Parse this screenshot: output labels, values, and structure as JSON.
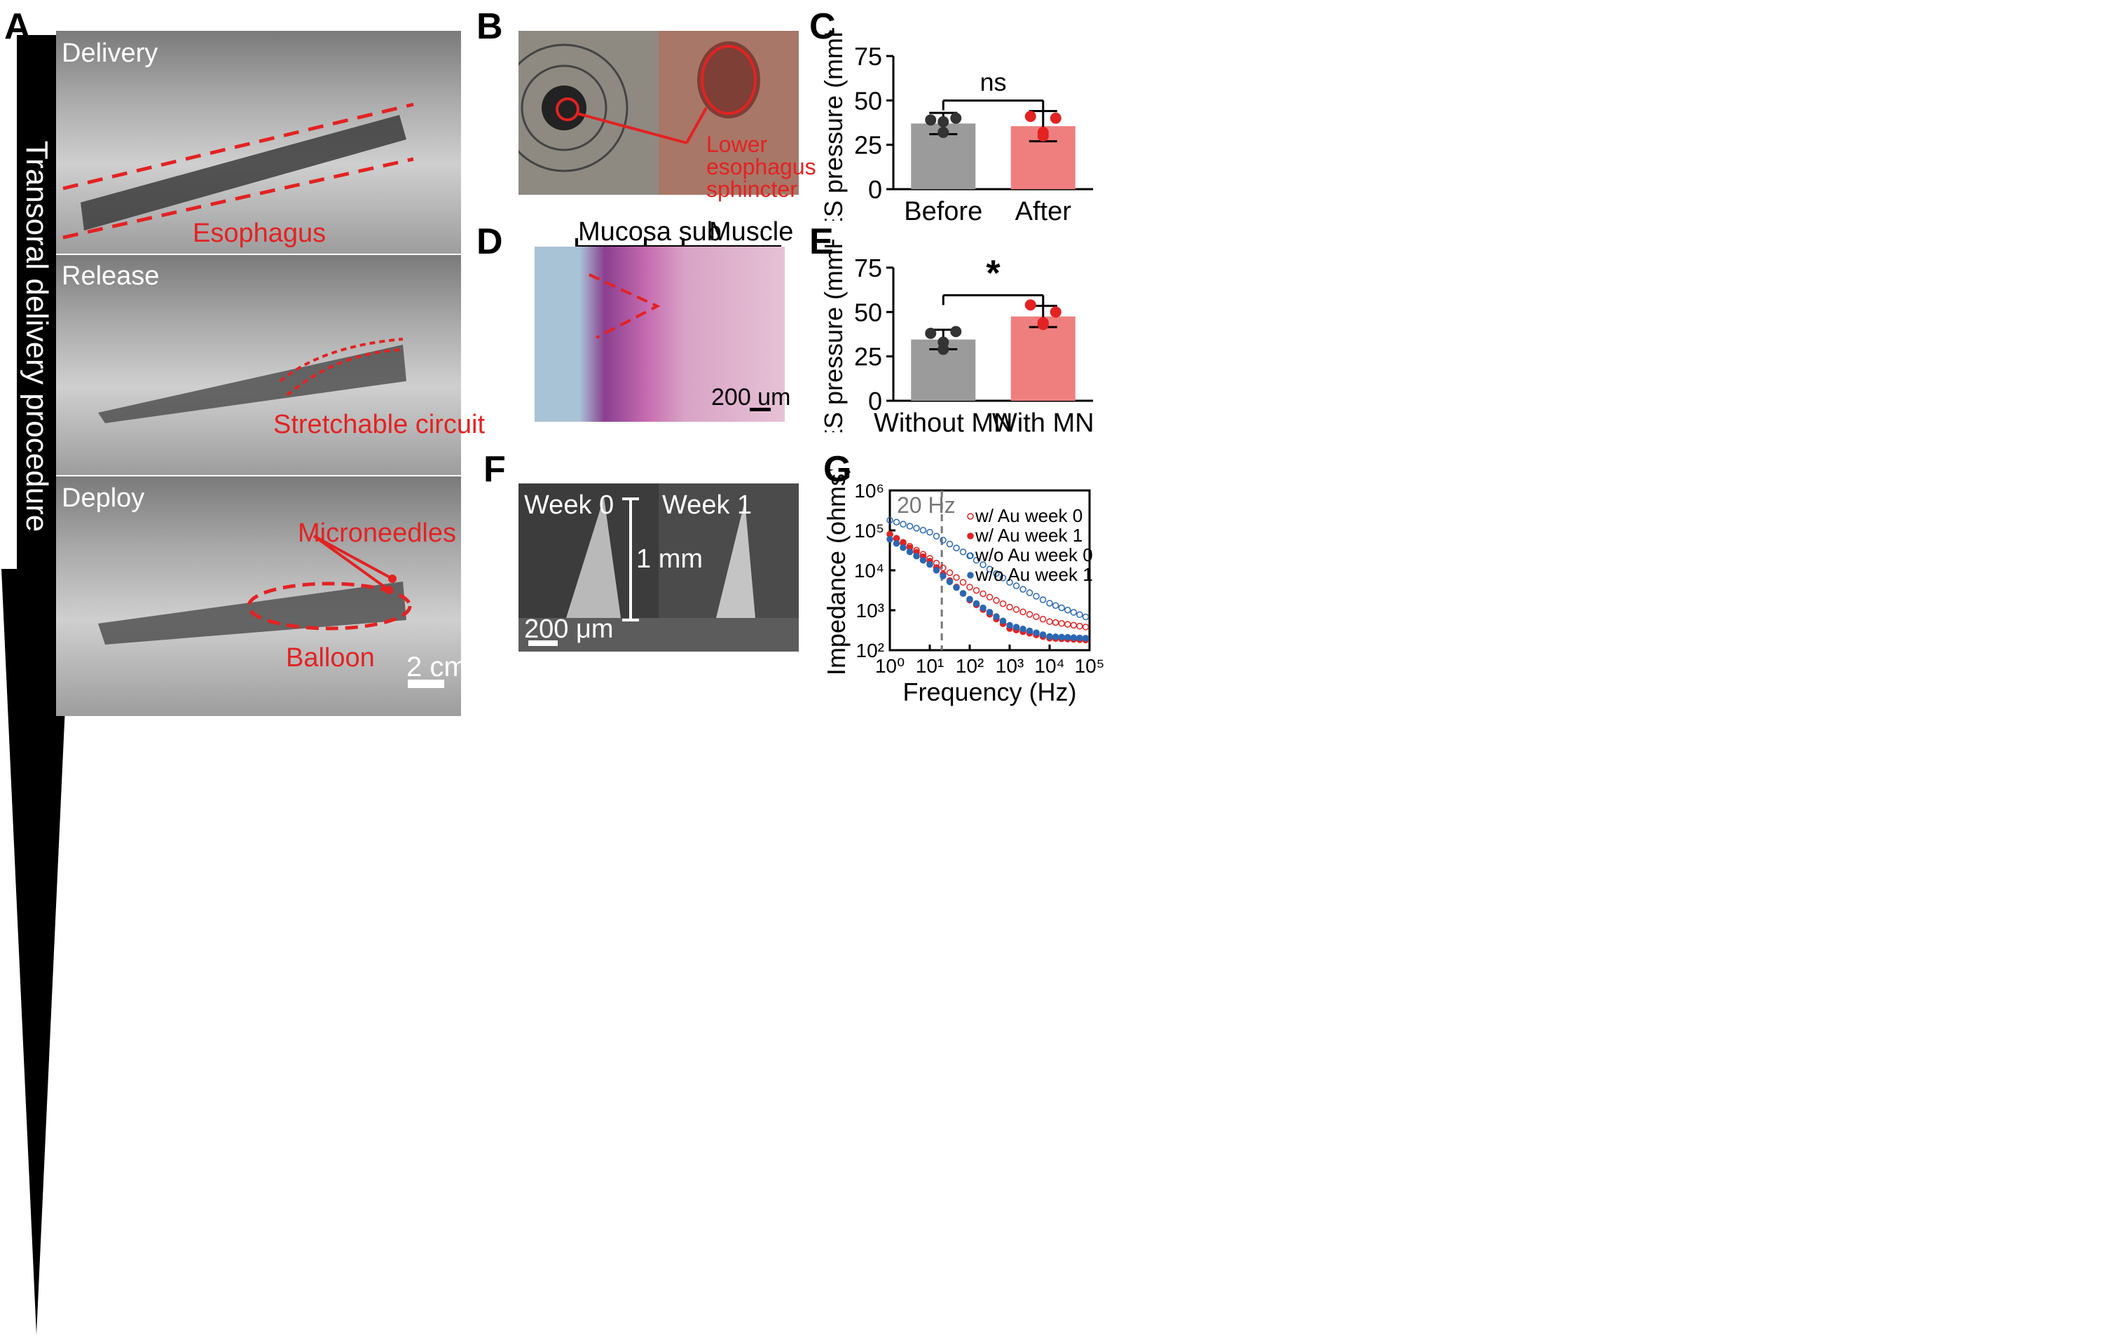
{
  "panels": {
    "A": "A",
    "B": "B",
    "C": "C",
    "D": "D",
    "E": "E",
    "F": "F",
    "G": "G"
  },
  "panel_a": {
    "arrow_text": "Transoral delivery procedure",
    "stages": [
      {
        "title": "Delivery",
        "label": "Esophagus"
      },
      {
        "title": "Release",
        "label": "Stretchable circuit"
      },
      {
        "title": "Deploy",
        "label_microneedles": "Microneedles",
        "label_balloon": "Balloon"
      }
    ],
    "scale_bar": "2 cm"
  },
  "panel_b": {
    "label": "Lower esophagus sphincter"
  },
  "panel_d": {
    "region_left": "Mucosa sub",
    "region_right": "Muscle",
    "scale_bar": "200 um"
  },
  "panel_f": {
    "left_title": "Week 0",
    "right_title": "Week 1",
    "height_label": "1 mm",
    "scale_bar": "200 μm"
  },
  "chart_data": [
    {
      "id": "C",
      "type": "bar",
      "ylabel": "LES pressure (mmHg)",
      "ylim": [
        0,
        75
      ],
      "yticks": [
        0,
        25,
        50,
        75
      ],
      "categories": [
        "Before",
        "After"
      ],
      "values": [
        37,
        35.5
      ],
      "error": [
        6,
        8.5
      ],
      "colors": [
        "#9b9b9b",
        "#ef7f7f"
      ],
      "point_colors": [
        "#333333",
        "#e32222"
      ],
      "points": [
        [
          39,
          40,
          32,
          38
        ],
        [
          41,
          40,
          30,
          32
        ]
      ],
      "significance": "ns"
    },
    {
      "id": "E",
      "type": "bar",
      "ylabel": "LES pressure (mmHg)",
      "ylim": [
        0,
        75
      ],
      "yticks": [
        0,
        25,
        50,
        75
      ],
      "categories": [
        "Without MN",
        "With MN"
      ],
      "values": [
        34.5,
        47.5
      ],
      "error": [
        5.5,
        6
      ],
      "colors": [
        "#9b9b9b",
        "#ef7f7f"
      ],
      "point_colors": [
        "#333333",
        "#e32222"
      ],
      "points": [
        [
          38,
          39,
          29,
          33
        ],
        [
          54,
          50,
          44,
          43
        ]
      ],
      "significance": "*"
    },
    {
      "id": "G",
      "type": "scatter",
      "xlabel": "Frequency (Hz)",
      "ylabel": "Impedance (ohms)",
      "xscale": "log",
      "yscale": "log",
      "xlim": [
        1,
        100000
      ],
      "ylim": [
        100,
        1000000
      ],
      "xtick_labels": [
        "10⁰",
        "10¹",
        "10²",
        "10³",
        "10⁴",
        "10⁵"
      ],
      "ytick_labels": [
        "10²",
        "10³",
        "10⁴",
        "10⁵",
        "10⁶"
      ],
      "vline": {
        "x": 20,
        "label": "20 Hz"
      },
      "legend_position": "top-right",
      "series": [
        {
          "name": "w/   Au week 0",
          "color": "#e32222",
          "filled": false,
          "x": [
            1,
            10,
            100,
            1000,
            10000,
            80000
          ],
          "y": [
            80000,
            20000,
            3800,
            1200,
            520,
            380
          ]
        },
        {
          "name": "w/   Au week 1",
          "color": "#e32222",
          "filled": true,
          "x": [
            1,
            10,
            100,
            1000,
            10000,
            80000
          ],
          "y": [
            80000,
            17000,
            1800,
            350,
            200,
            180
          ]
        },
        {
          "name": "w/o Au week 0",
          "color": "#2a67b3",
          "filled": false,
          "x": [
            1,
            10,
            100,
            1000,
            10000,
            80000
          ],
          "y": [
            180000,
            90000,
            23000,
            5000,
            1500,
            680
          ]
        },
        {
          "name": "w/o Au week 1",
          "color": "#2a67b3",
          "filled": true,
          "x": [
            1,
            10,
            100,
            1000,
            10000,
            80000
          ],
          "y": [
            60000,
            14000,
            1900,
            420,
            220,
            200
          ]
        }
      ]
    }
  ]
}
